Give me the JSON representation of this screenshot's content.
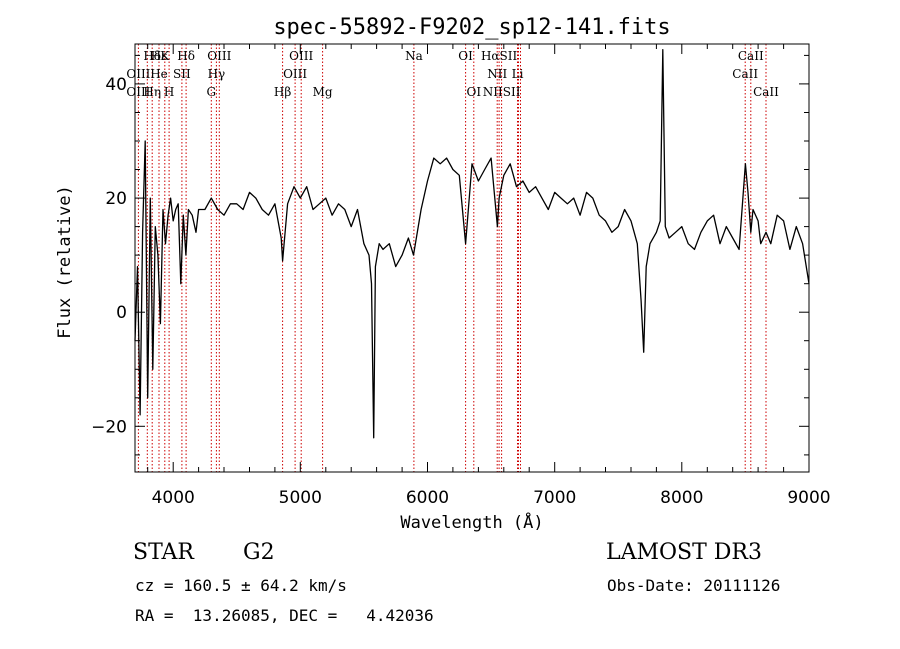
{
  "chart_data": {
    "type": "line",
    "title": "spec-55892-F9202_sp12-141.fits",
    "xlabel": "Wavelength (Å)",
    "ylabel": "Flux (relative)",
    "xlim": [
      3700,
      9000
    ],
    "ylim": [
      -28,
      47
    ],
    "xticks": [
      4000,
      5000,
      6000,
      7000,
      8000,
      9000
    ],
    "yticks": [
      -20,
      0,
      20,
      40
    ],
    "grid": false,
    "series": [
      {
        "name": "flux",
        "x": [
          3700,
          3720,
          3740,
          3760,
          3780,
          3800,
          3820,
          3840,
          3860,
          3880,
          3900,
          3920,
          3940,
          3960,
          3980,
          4000,
          4020,
          4040,
          4060,
          4080,
          4100,
          4120,
          4150,
          4180,
          4200,
          4250,
          4300,
          4350,
          4400,
          4450,
          4500,
          4550,
          4600,
          4650,
          4700,
          4750,
          4800,
          4850,
          4861,
          4900,
          4950,
          5000,
          5050,
          5100,
          5150,
          5200,
          5250,
          5300,
          5350,
          5400,
          5450,
          5500,
          5540,
          5560,
          5577,
          5590,
          5620,
          5650,
          5700,
          5750,
          5800,
          5850,
          5890,
          5950,
          6000,
          6050,
          6100,
          6150,
          6200,
          6250,
          6300,
          6350,
          6400,
          6450,
          6500,
          6550,
          6563,
          6600,
          6650,
          6700,
          6750,
          6800,
          6850,
          6900,
          6950,
          7000,
          7050,
          7100,
          7150,
          7200,
          7250,
          7300,
          7350,
          7400,
          7450,
          7500,
          7550,
          7600,
          7650,
          7680,
          7700,
          7720,
          7750,
          7800,
          7830,
          7850,
          7870,
          7900,
          7950,
          8000,
          8050,
          8100,
          8150,
          8200,
          8250,
          8300,
          8350,
          8400,
          8450,
          8500,
          8520,
          8542,
          8560,
          8600,
          8620,
          8662,
          8700,
          8750,
          8800,
          8850,
          8900,
          8950,
          9000
        ],
        "y": [
          -5,
          8,
          -18,
          14,
          30,
          -15,
          20,
          -10,
          15,
          10,
          -2,
          18,
          12,
          17,
          20,
          16,
          18,
          19,
          5,
          17,
          10,
          18,
          17,
          14,
          18,
          18,
          20,
          18,
          17,
          19,
          19,
          18,
          21,
          20,
          18,
          17,
          19,
          13,
          9,
          19,
          22,
          20,
          22,
          18,
          19,
          20,
          17,
          19,
          18,
          15,
          18,
          12,
          10,
          5,
          -22,
          8,
          12,
          11,
          12,
          8,
          10,
          13,
          10,
          18,
          23,
          27,
          26,
          27,
          25,
          24,
          12,
          26,
          23,
          25,
          27,
          15,
          20,
          24,
          26,
          22,
          23,
          21,
          22,
          20,
          18,
          21,
          20,
          19,
          20,
          17,
          21,
          20,
          17,
          16,
          14,
          15,
          18,
          16,
          12,
          2,
          -7,
          8,
          12,
          14,
          16,
          46,
          15,
          13,
          14,
          15,
          12,
          11,
          14,
          16,
          17,
          12,
          15,
          13,
          11,
          26,
          21,
          14,
          18,
          16,
          12,
          14,
          12,
          17,
          16,
          11,
          15,
          12,
          5
        ]
      }
    ],
    "line_groups": [
      {
        "names": [
          "Hδ",
          "Hε",
          "K",
          "Hδ",
          "OIII",
          "OIII",
          "Na",
          "OI",
          "HαSII",
          "CaII"
        ],
        "x": [
          3835,
          3889,
          3934,
          4102,
          4363,
          5007,
          5893,
          6300,
          6563,
          8542
        ]
      },
      {
        "names": [
          "OIII",
          "He",
          "SII",
          "Hγ",
          "OIII",
          "NII",
          "Li",
          "CaII"
        ],
        "x": [
          3727,
          3889,
          4069,
          4340,
          4959,
          6548,
          6708,
          8498
        ]
      },
      {
        "names": [
          "OIII",
          "Hη",
          "H",
          "G",
          "Hβ",
          "Mg",
          "OI",
          "NIISII",
          "CaII"
        ],
        "x": [
          3727,
          3835,
          3968,
          4300,
          4861,
          5175,
          6364,
          6583,
          8662
        ]
      }
    ],
    "line_markers": [
      3727,
      3797,
      3835,
      3889,
      3934,
      3968,
      4069,
      4102,
      4300,
      4340,
      4363,
      4861,
      4959,
      5007,
      5175,
      5893,
      6300,
      6364,
      6548,
      6563,
      6583,
      6708,
      6716,
      6731,
      8498,
      8542,
      8662
    ]
  },
  "info": {
    "class_label": "STAR",
    "subclass": "G2",
    "survey": "LAMOST DR3",
    "cz_text": "cz = 160.5 ± 64.2 km/s",
    "obs_date": "Obs-Date: 20111126",
    "radec": "RA =  13.26085, DEC =   4.42036"
  },
  "colors": {
    "line": "#000000",
    "marker": "#cc0000",
    "background": "#ffffff"
  }
}
